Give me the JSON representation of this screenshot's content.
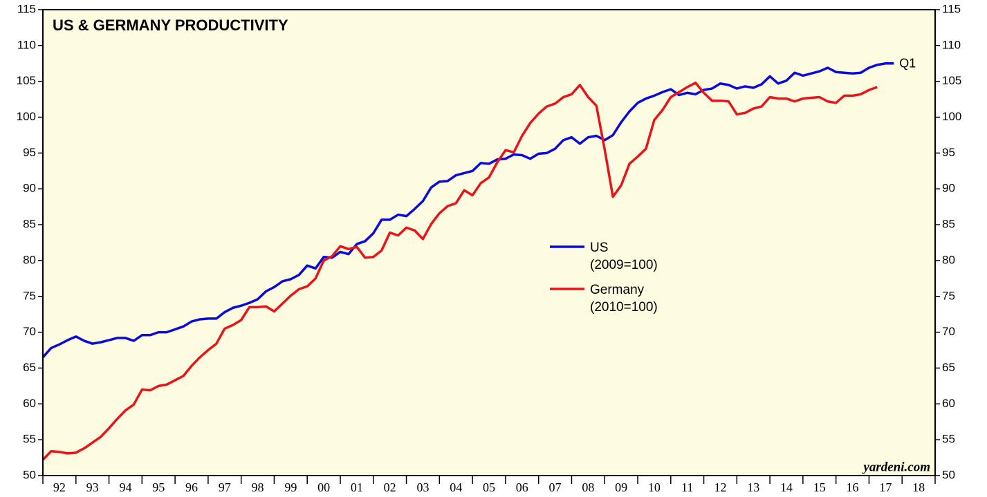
{
  "chart_data": {
    "type": "line",
    "title": "US & GERMANY PRODUCTIVITY",
    "source": "yardeni.com",
    "annotation": "Q1",
    "x": [
      1992,
      1992.25,
      1992.5,
      1992.75,
      1993,
      1993.25,
      1993.5,
      1993.75,
      1994,
      1994.25,
      1994.5,
      1994.75,
      1995,
      1995.25,
      1995.5,
      1995.75,
      1996,
      1996.25,
      1996.5,
      1996.75,
      1997,
      1997.25,
      1997.5,
      1997.75,
      1998,
      1998.25,
      1998.5,
      1998.75,
      1999,
      1999.25,
      1999.5,
      1999.75,
      2000,
      2000.25,
      2000.5,
      2000.75,
      2001,
      2001.25,
      2001.5,
      2001.75,
      2002,
      2002.25,
      2002.5,
      2002.75,
      2003,
      2003.25,
      2003.5,
      2003.75,
      2004,
      2004.25,
      2004.5,
      2004.75,
      2005,
      2005.25,
      2005.5,
      2005.75,
      2006,
      2006.25,
      2006.5,
      2006.75,
      2007,
      2007.25,
      2007.5,
      2007.75,
      2008,
      2008.25,
      2008.5,
      2008.75,
      2009,
      2009.25,
      2009.5,
      2009.75,
      2010,
      2010.25,
      2010.5,
      2010.75,
      2011,
      2011.25,
      2011.5,
      2011.75,
      2012,
      2012.25,
      2012.5,
      2012.75,
      2013,
      2013.25,
      2013.5,
      2013.75,
      2014,
      2014.25,
      2014.5,
      2014.75,
      2015,
      2015.25,
      2015.5,
      2015.75,
      2016,
      2016.25,
      2016.5,
      2016.75,
      2017,
      2017.25,
      2017.5,
      2017.75
    ],
    "series": [
      {
        "name": "US",
        "index_base": "(2009=100)",
        "color": "#0a0adc",
        "values": [
          66.5,
          67.8,
          68.3,
          68.9,
          69.4,
          68.8,
          68.4,
          68.6,
          68.9,
          69.2,
          69.2,
          68.8,
          69.6,
          69.6,
          70.0,
          70.0,
          70.4,
          70.8,
          71.5,
          71.8,
          71.9,
          71.9,
          72.8,
          73.4,
          73.7,
          74.1,
          74.6,
          75.7,
          76.3,
          77.1,
          77.4,
          78.0,
          79.3,
          78.9,
          80.5,
          80.4,
          81.2,
          80.9,
          82.3,
          82.7,
          83.8,
          85.7,
          85.7,
          86.4,
          86.2,
          87.2,
          88.3,
          90.2,
          91.0,
          91.1,
          91.9,
          92.2,
          92.5,
          93.6,
          93.5,
          94.1,
          94.2,
          94.8,
          94.7,
          94.2,
          94.9,
          95.0,
          95.6,
          96.8,
          97.2,
          96.3,
          97.2,
          97.4,
          96.8,
          97.5,
          99.3,
          100.8,
          102.0,
          102.6,
          103.0,
          103.5,
          103.9,
          103.1,
          103.4,
          103.2,
          103.8,
          104.0,
          104.7,
          104.5,
          104.0,
          104.3,
          104.1,
          104.6,
          105.7,
          104.7,
          105.1,
          106.2,
          105.8,
          106.1,
          106.4,
          106.9,
          106.3,
          106.2,
          106.1,
          106.2,
          106.9,
          107.3,
          107.5,
          107.5
        ]
      },
      {
        "name": "Germany",
        "index_base": "(2010=100)",
        "color": "#e8141a",
        "values": [
          52.2,
          53.4,
          53.3,
          53.1,
          53.2,
          53.8,
          54.6,
          55.4,
          56.6,
          57.9,
          59.1,
          59.9,
          62.0,
          61.9,
          62.5,
          62.7,
          63.3,
          63.9,
          65.3,
          66.5,
          67.5,
          68.4,
          70.5,
          71.0,
          71.7,
          73.5,
          73.5,
          73.6,
          72.9,
          74.0,
          75.1,
          76.0,
          76.4,
          77.5,
          80.0,
          80.6,
          82.0,
          81.6,
          81.9,
          80.4,
          80.5,
          81.4,
          83.9,
          83.5,
          84.6,
          84.2,
          83.0,
          85.1,
          86.6,
          87.6,
          88.0,
          89.8,
          89.1,
          90.8,
          91.6,
          93.7,
          95.4,
          95.1,
          97.4,
          99.2,
          100.5,
          101.5,
          101.9,
          102.8,
          103.2,
          104.5,
          102.8,
          101.6,
          95.5,
          88.9,
          90.5,
          93.5,
          94.5,
          95.6,
          99.6,
          101.0,
          102.8,
          103.5,
          104.2,
          104.8,
          103.4,
          102.3,
          102.3,
          102.2,
          100.4,
          100.6,
          101.2,
          101.5,
          102.8,
          102.6,
          102.6,
          102.2,
          102.6,
          102.7,
          102.8,
          102.2,
          102.0,
          103.0,
          103.0,
          103.2,
          103.8,
          104.2,
          null,
          null
        ]
      }
    ],
    "xlim": [
      1992,
      2019
    ],
    "xticks": [
      1992,
      1993,
      1994,
      1995,
      1996,
      1997,
      1998,
      1999,
      2000,
      2001,
      2002,
      2003,
      2004,
      2005,
      2006,
      2007,
      2008,
      2009,
      2010,
      2011,
      2012,
      2013,
      2014,
      2015,
      2016,
      2017,
      2018,
      2019
    ],
    "xtick_labels": [
      "92",
      "93",
      "94",
      "95",
      "96",
      "97",
      "98",
      "99",
      "00",
      "01",
      "02",
      "03",
      "04",
      "05",
      "06",
      "07",
      "08",
      "09",
      "10",
      "11",
      "12",
      "13",
      "14",
      "15",
      "16",
      "17",
      "18"
    ],
    "ylim": [
      50,
      115
    ],
    "yticks": [
      50,
      55,
      60,
      65,
      70,
      75,
      80,
      85,
      90,
      95,
      100,
      105,
      110,
      115
    ],
    "y2lim": [
      50,
      115
    ],
    "y2ticks": [
      50,
      55,
      60,
      65,
      70,
      75,
      80,
      85,
      90,
      95,
      100,
      105,
      110,
      115
    ],
    "plot_background": "#fdfbe0"
  }
}
